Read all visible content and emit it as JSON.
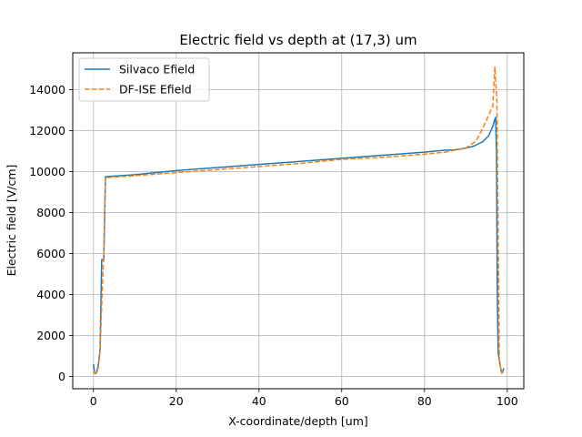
{
  "chart_data": {
    "type": "line",
    "title": "Electric field vs depth at (17,3) um",
    "xlabel": "X-coordinate/depth [um]",
    "ylabel": "Electric field [V/cm]",
    "xlim": [
      -5,
      104
    ],
    "ylim": [
      -600,
      15800
    ],
    "xticks": [
      0,
      20,
      40,
      60,
      80,
      100
    ],
    "yticks": [
      0,
      2000,
      4000,
      6000,
      8000,
      10000,
      12000,
      14000
    ],
    "grid": true,
    "legend_position": "top-left",
    "series": [
      {
        "name": "Silvaco Efield",
        "color": "#1f77b4",
        "style": "solid",
        "points": [
          [
            0,
            600
          ],
          [
            0.3,
            150
          ],
          [
            0.7,
            150
          ],
          [
            1.2,
            600
          ],
          [
            1.6,
            1300
          ],
          [
            2.0,
            5700
          ],
          [
            2.5,
            5700
          ],
          [
            2.9,
            9750
          ],
          [
            10,
            9850
          ],
          [
            20,
            10050
          ],
          [
            30,
            10200
          ],
          [
            40,
            10350
          ],
          [
            50,
            10500
          ],
          [
            60,
            10650
          ],
          [
            70,
            10800
          ],
          [
            80,
            10950
          ],
          [
            85,
            11050
          ],
          [
            87,
            11050
          ],
          [
            90,
            11150
          ],
          [
            92,
            11250
          ],
          [
            94,
            11450
          ],
          [
            95.5,
            11750
          ],
          [
            96.5,
            12200
          ],
          [
            97,
            12550
          ],
          [
            97.2,
            12650
          ],
          [
            97.4,
            11000
          ],
          [
            97.6,
            4000
          ],
          [
            97.8,
            1200
          ],
          [
            98.3,
            500
          ],
          [
            98.7,
            150
          ],
          [
            99.2,
            400
          ]
        ]
      },
      {
        "name": "DF-ISE Efield",
        "color": "#ff7f0e",
        "style": "dashed",
        "points": [
          [
            0,
            250
          ],
          [
            0.3,
            200
          ],
          [
            0.7,
            150
          ],
          [
            1.2,
            450
          ],
          [
            1.6,
            1200
          ],
          [
            2.0,
            3500
          ],
          [
            2.5,
            6000
          ],
          [
            2.9,
            9700
          ],
          [
            10,
            9800
          ],
          [
            20,
            9950
          ],
          [
            30,
            10100
          ],
          [
            40,
            10250
          ],
          [
            50,
            10400
          ],
          [
            60,
            10600
          ],
          [
            70,
            10700
          ],
          [
            80,
            10850
          ],
          [
            85,
            10950
          ],
          [
            90,
            11150
          ],
          [
            92.5,
            11500
          ],
          [
            94.5,
            12300
          ],
          [
            96.5,
            13200
          ],
          [
            97,
            15100
          ],
          [
            97.2,
            14400
          ],
          [
            97.5,
            13500
          ],
          [
            97.8,
            7300
          ],
          [
            98.1,
            700
          ],
          [
            98.7,
            150
          ],
          [
            99.4,
            350
          ]
        ]
      }
    ]
  }
}
